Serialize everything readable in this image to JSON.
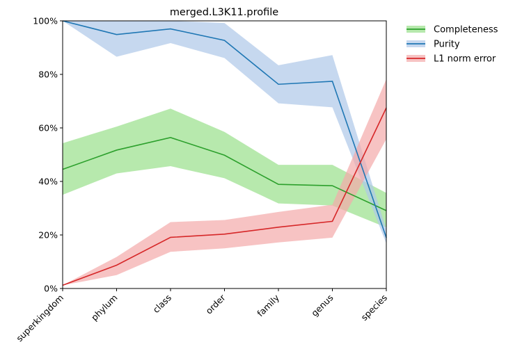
{
  "chart_data": {
    "type": "line",
    "title": "merged.L3K11.profile",
    "xlabel": "",
    "ylabel": "",
    "ylim": [
      0,
      1
    ],
    "y_tick_format": "percent",
    "y_ticks": [
      0,
      0.2,
      0.4,
      0.6,
      0.8,
      1.0
    ],
    "categories": [
      "superkingdom",
      "phylum",
      "class",
      "order",
      "family",
      "genus",
      "species"
    ],
    "grid": false,
    "legend_position": "outside top-right",
    "series": [
      {
        "name": "Completeness",
        "color": "#2ca02c",
        "band_color": "#98df8a",
        "values": [
          0.445,
          0.517,
          0.564,
          0.498,
          0.389,
          0.384,
          0.291
        ],
        "lower": [
          0.35,
          0.43,
          0.457,
          0.412,
          0.318,
          0.31,
          0.228
        ],
        "upper": [
          0.543,
          0.605,
          0.672,
          0.585,
          0.462,
          0.462,
          0.357
        ]
      },
      {
        "name": "Purity",
        "color": "#1f77b4",
        "band_color": "#aec7e8",
        "values": [
          1.0,
          0.949,
          0.97,
          0.927,
          0.763,
          0.774,
          0.19
        ],
        "lower": [
          1.0,
          0.866,
          0.917,
          0.861,
          0.692,
          0.677,
          0.168
        ],
        "upper": [
          1.0,
          1.0,
          1.0,
          0.992,
          0.834,
          0.872,
          0.22
        ]
      },
      {
        "name": "L1 norm error",
        "color": "#d62728",
        "band_color": "#f4a9aa",
        "values": [
          0.012,
          0.087,
          0.191,
          0.203,
          0.229,
          0.251,
          0.675
        ],
        "lower": [
          0.012,
          0.05,
          0.137,
          0.15,
          0.172,
          0.19,
          0.558
        ],
        "upper": [
          0.012,
          0.118,
          0.248,
          0.256,
          0.286,
          0.313,
          0.782
        ]
      }
    ]
  }
}
